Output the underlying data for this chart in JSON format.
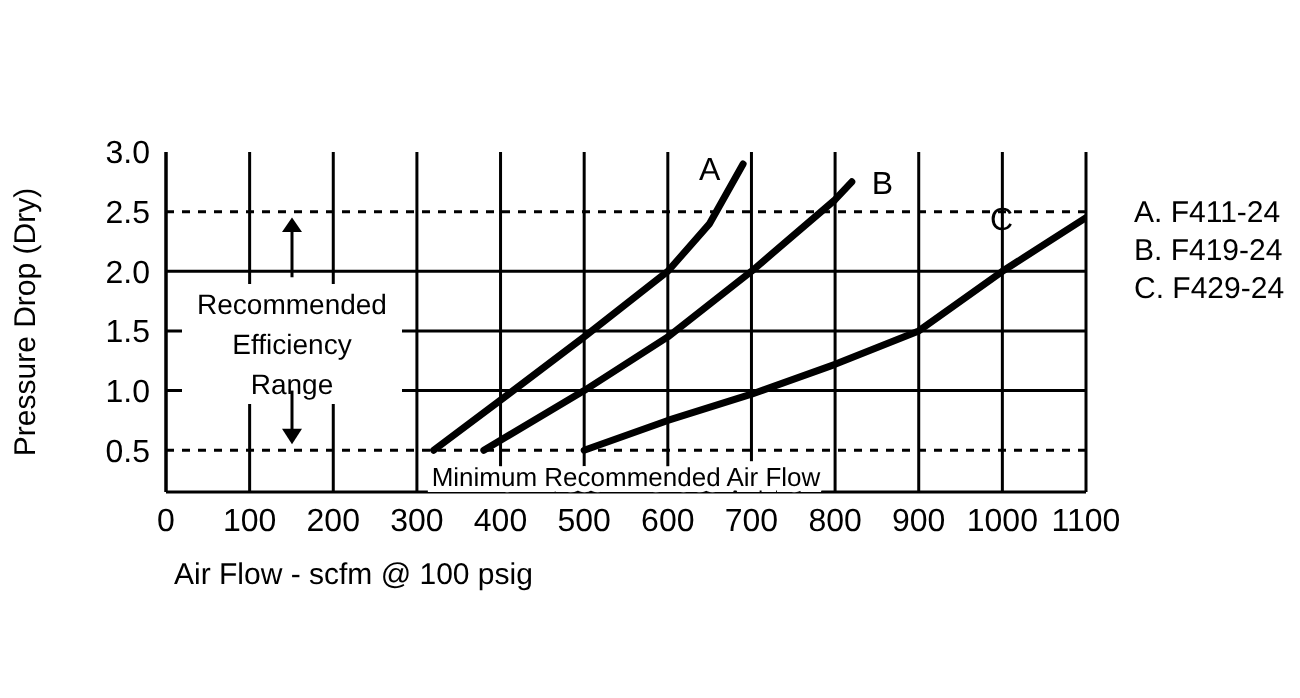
{
  "chart_data": {
    "type": "line",
    "xlabel": "Air Flow - scfm @ 100 psig",
    "ylabel": "Pressure Drop (Dry)",
    "xlim": [
      0,
      1100
    ],
    "xticks": [
      0,
      100,
      200,
      300,
      400,
      500,
      600,
      700,
      800,
      900,
      1000,
      1100
    ],
    "ylim": [
      0.15,
      3.0
    ],
    "yticks": [
      {
        "value": 0.5,
        "label": "0.5"
      },
      {
        "value": 1,
        "label": "1.0"
      },
      {
        "value": 1.5,
        "label": "1.5"
      },
      {
        "value": 2,
        "label": "2.0"
      },
      {
        "value": 2.5,
        "label": "2.5"
      },
      {
        "value": 3,
        "label": "3.0"
      }
    ],
    "grid": "x",
    "marker": "none",
    "line_style": "solid",
    "legend": false,
    "series": [
      {
        "name": "A",
        "color": "#000000",
        "x": [
          320,
          400,
          500,
          600,
          650,
          690
        ],
        "values": [
          0.5,
          0.92,
          1.45,
          2.0,
          2.4,
          2.9
        ]
      },
      {
        "name": "B",
        "color": "#000000",
        "x": [
          380,
          500,
          600,
          700,
          800,
          820
        ],
        "values": [
          0.5,
          1.0,
          1.45,
          2.0,
          2.6,
          2.75
        ]
      },
      {
        "name": "C",
        "color": "#000000",
        "x": [
          500,
          600,
          700,
          800,
          900,
          1000,
          1100
        ],
        "values": [
          0.5,
          0.75,
          0.97,
          1.22,
          1.5,
          2.0,
          2.45
        ]
      }
    ],
    "ref_lines": [
      {
        "axis": "y",
        "value": 0.5,
        "label": "Minimum Recommended Air Flow",
        "line_style": "dashed",
        "color": "#000000"
      },
      {
        "axis": "y",
        "value": 1.0,
        "label": null,
        "line_style": "solid",
        "color": "#000000"
      },
      {
        "axis": "y",
        "value": 1.5,
        "label": null,
        "line_style": "solid",
        "color": "#000000"
      },
      {
        "axis": "y",
        "value": 2.0,
        "label": null,
        "line_style": "solid",
        "color": "#000000"
      },
      {
        "axis": "y",
        "value": 2.5,
        "label": null,
        "line_style": "dashed",
        "color": "#000000"
      }
    ],
    "annotations": [
      "Recommended Efficiency Range",
      "A. F411-24",
      "B. F419-24",
      "C. F429-24"
    ]
  }
}
